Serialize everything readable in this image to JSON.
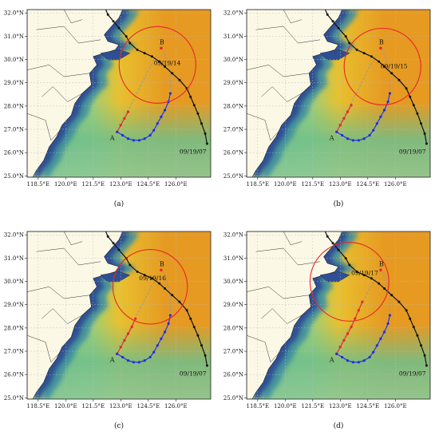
{
  "lat_ticks": [
    "32.0°N",
    "31.0°N",
    "30.0°N",
    "29.0°N",
    "28.0°N",
    "27.0°N",
    "26.0°N",
    "25.0°N"
  ],
  "lon_ticks": [
    "118.5°E",
    "120.0°E",
    "121.5°E",
    "123.0°E",
    "124.5°E",
    "126.0°E"
  ],
  "point_a_label": "A",
  "point_b_label": "B",
  "start_time_label": "09/19/07",
  "colors": {
    "land": "#fbf8e6",
    "coast_deep": "#2e4f93",
    "coast_mid": "#3f8fa0",
    "sea_green": "#6fbf8c",
    "sea_yellow": "#e8c12e",
    "sea_orange": "#e69a22",
    "radius_circle": "#e8262a",
    "track_black": "#111111",
    "track_red": "#e8262a",
    "track_blue": "#1f2ee0",
    "track_gray": "#9a9a9a"
  },
  "panels": [
    {
      "label": "(a)",
      "time": "09/19/14"
    },
    {
      "label": "(b)",
      "time": "09/19/15"
    },
    {
      "label": "(c)",
      "time": "09/19/16"
    },
    {
      "label": "(d)",
      "time": "09/19/17"
    }
  ]
}
